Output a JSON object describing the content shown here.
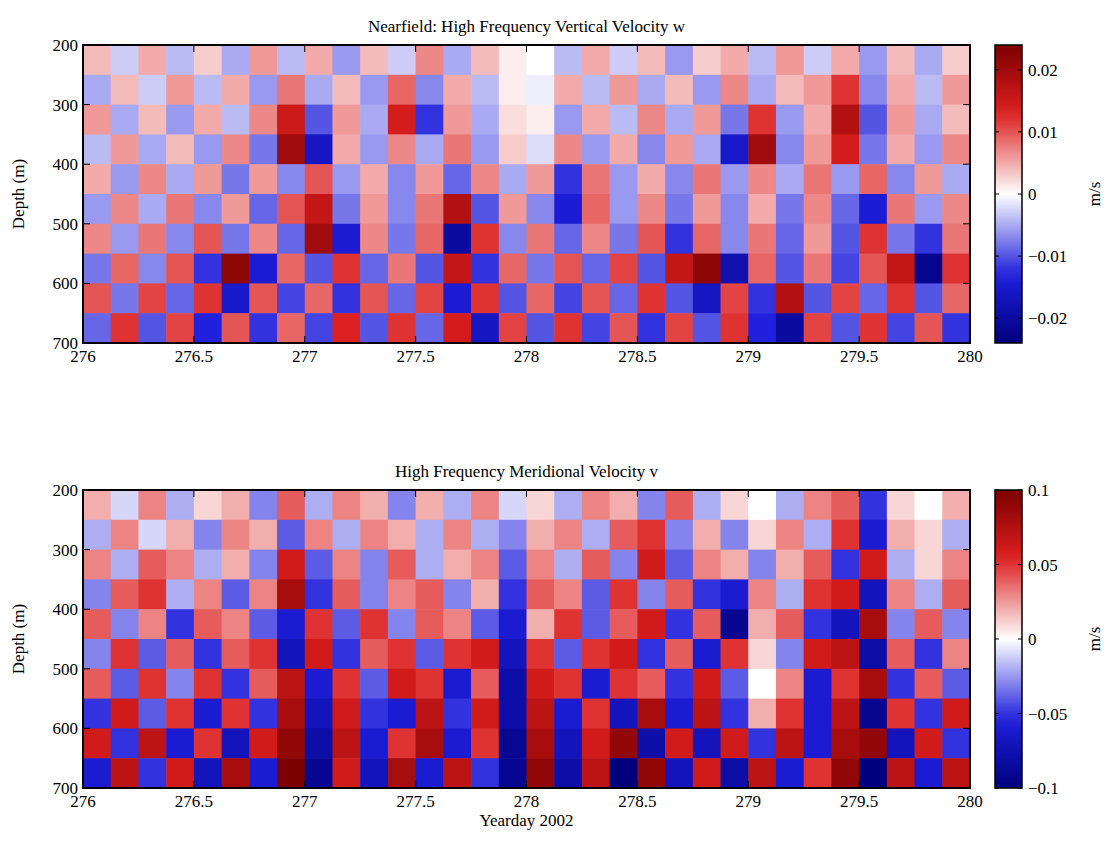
{
  "chart_data": [
    {
      "type": "heatmap",
      "title": "Nearfield: High Frequency Vertical Velocity w",
      "ylabel": "Depth (m)",
      "xlim": [
        276,
        280
      ],
      "xticks": [
        276,
        276.5,
        277,
        277.5,
        278,
        278.5,
        279,
        279.5,
        280
      ],
      "ylim": [
        700,
        200
      ],
      "yticks": [
        200,
        300,
        400,
        500,
        600,
        700
      ],
      "x": [
        276.0625,
        276.1875,
        276.3125,
        276.4375,
        276.5625,
        276.6875,
        276.8125,
        276.9375,
        277.0625,
        277.1875,
        277.3125,
        277.4375,
        277.5625,
        277.6875,
        277.8125,
        277.9375,
        278.0625,
        278.1875,
        278.3125,
        278.4375,
        278.5625,
        278.6875,
        278.8125,
        278.9375,
        279.0625,
        279.1875,
        279.3125,
        279.4375,
        279.5625,
        279.6875,
        279.8125,
        279.9375
      ],
      "y": [
        225,
        275,
        325,
        375,
        425,
        475,
        525,
        575,
        625,
        675
      ],
      "values": [
        [
          0.004,
          -0.003,
          0.005,
          -0.004,
          0.003,
          -0.005,
          0.006,
          -0.004,
          0.005,
          -0.006,
          0.004,
          -0.003,
          0.007,
          -0.005,
          0.004,
          0.001,
          0.0,
          -0.004,
          0.005,
          -0.003,
          0.004,
          -0.006,
          0.003,
          0.005,
          -0.004,
          0.006,
          -0.003,
          0.005,
          -0.006,
          0.004,
          -0.005,
          0.003
        ],
        [
          -0.005,
          0.004,
          -0.003,
          0.006,
          -0.004,
          0.005,
          -0.006,
          0.008,
          -0.005,
          0.004,
          -0.006,
          0.009,
          -0.007,
          0.005,
          -0.004,
          0.001,
          -0.001,
          0.005,
          -0.004,
          0.006,
          -0.005,
          0.004,
          -0.006,
          0.007,
          -0.005,
          0.004,
          0.006,
          0.012,
          -0.007,
          0.005,
          -0.004,
          0.006
        ],
        [
          0.006,
          -0.005,
          0.004,
          -0.006,
          0.005,
          -0.004,
          0.007,
          0.015,
          -0.01,
          0.006,
          -0.005,
          0.014,
          -0.012,
          0.006,
          -0.005,
          0.002,
          0.001,
          -0.006,
          0.005,
          -0.004,
          0.007,
          -0.005,
          0.006,
          -0.008,
          0.012,
          -0.006,
          0.005,
          0.018,
          -0.01,
          0.006,
          -0.005,
          0.004
        ],
        [
          -0.004,
          0.006,
          -0.005,
          0.004,
          -0.006,
          0.007,
          -0.008,
          0.02,
          -0.016,
          0.005,
          -0.006,
          0.007,
          -0.005,
          0.008,
          -0.006,
          0.003,
          -0.002,
          0.007,
          -0.006,
          0.005,
          -0.007,
          0.006,
          -0.005,
          -0.015,
          0.02,
          -0.007,
          0.006,
          0.014,
          -0.008,
          0.005,
          -0.006,
          0.007
        ],
        [
          0.005,
          -0.006,
          0.007,
          -0.005,
          0.006,
          -0.008,
          0.006,
          -0.007,
          0.01,
          -0.006,
          0.005,
          -0.007,
          0.006,
          -0.009,
          0.007,
          -0.005,
          0.006,
          -0.012,
          0.008,
          -0.006,
          0.005,
          -0.007,
          0.008,
          -0.006,
          0.007,
          -0.005,
          0.008,
          -0.006,
          0.009,
          -0.007,
          0.006,
          -0.005
        ],
        [
          -0.006,
          0.007,
          -0.005,
          0.008,
          -0.007,
          0.006,
          -0.009,
          0.01,
          0.016,
          -0.008,
          0.006,
          -0.007,
          0.008,
          0.018,
          -0.01,
          0.006,
          -0.007,
          -0.014,
          0.009,
          -0.006,
          0.007,
          -0.008,
          0.006,
          -0.007,
          0.005,
          -0.008,
          0.007,
          -0.009,
          -0.014,
          0.008,
          -0.006,
          0.007
        ],
        [
          0.007,
          -0.006,
          0.008,
          -0.007,
          0.01,
          -0.008,
          0.007,
          -0.009,
          0.02,
          -0.014,
          0.007,
          -0.008,
          0.009,
          -0.02,
          0.012,
          -0.007,
          0.008,
          -0.009,
          0.007,
          -0.008,
          0.01,
          -0.012,
          0.009,
          -0.007,
          0.008,
          -0.009,
          0.006,
          -0.01,
          0.012,
          -0.008,
          -0.012,
          0.008
        ],
        [
          -0.008,
          0.009,
          -0.007,
          0.01,
          -0.012,
          0.022,
          -0.014,
          0.009,
          -0.01,
          0.012,
          -0.009,
          0.008,
          -0.01,
          0.016,
          -0.012,
          0.009,
          -0.008,
          0.01,
          -0.009,
          0.011,
          -0.01,
          0.016,
          0.022,
          -0.018,
          0.009,
          -0.01,
          0.008,
          -0.011,
          0.01,
          0.016,
          -0.022,
          0.012
        ],
        [
          0.01,
          -0.008,
          0.011,
          -0.009,
          0.012,
          -0.015,
          0.01,
          -0.011,
          0.009,
          -0.012,
          0.01,
          -0.009,
          0.011,
          -0.014,
          0.012,
          -0.01,
          0.009,
          -0.011,
          0.01,
          -0.009,
          0.012,
          -0.01,
          -0.016,
          0.011,
          -0.012,
          0.018,
          -0.01,
          0.011,
          -0.009,
          0.012,
          -0.01,
          0.009
        ],
        [
          -0.009,
          0.012,
          -0.01,
          0.011,
          -0.013,
          0.01,
          -0.012,
          0.009,
          -0.011,
          0.013,
          -0.01,
          0.012,
          -0.009,
          0.014,
          -0.016,
          0.011,
          -0.01,
          0.012,
          -0.011,
          0.01,
          -0.012,
          0.011,
          -0.01,
          0.012,
          -0.013,
          -0.02,
          0.011,
          -0.01,
          0.012,
          -0.011,
          0.01,
          -0.012
        ]
      ],
      "colorbar": {
        "label": "m/s",
        "range": [
          -0.024,
          0.024
        ],
        "ticks": [
          -0.02,
          -0.01,
          0,
          0.01,
          0.02
        ]
      }
    },
    {
      "type": "heatmap",
      "title": "High Frequency Meridional Velocity v",
      "xlabel": "Yearday 2002",
      "ylabel": "Depth (m)",
      "xlim": [
        276,
        280
      ],
      "xticks": [
        276,
        276.5,
        277,
        277.5,
        278,
        278.5,
        279,
        279.5,
        280
      ],
      "ylim": [
        700,
        200
      ],
      "yticks": [
        200,
        300,
        400,
        500,
        600,
        700
      ],
      "x": [
        276.0625,
        276.1875,
        276.3125,
        276.4375,
        276.5625,
        276.6875,
        276.8125,
        276.9375,
        277.0625,
        277.1875,
        277.3125,
        277.4375,
        277.5625,
        277.6875,
        277.8125,
        277.9375,
        278.0625,
        278.1875,
        278.3125,
        278.4375,
        278.5625,
        278.6875,
        278.8125,
        278.9375,
        279.0625,
        279.1875,
        279.3125,
        279.4375,
        279.5625,
        279.6875,
        279.8125,
        279.9375
      ],
      "y": [
        225,
        275,
        325,
        375,
        425,
        475,
        525,
        575,
        625,
        675
      ],
      "values": [
        [
          0.02,
          -0.01,
          0.03,
          -0.02,
          0.01,
          0.02,
          -0.03,
          0.04,
          -0.02,
          0.03,
          0.02,
          -0.03,
          0.02,
          -0.02,
          0.03,
          -0.01,
          0.01,
          -0.02,
          0.03,
          0.02,
          -0.03,
          0.04,
          -0.02,
          0.01,
          0.0,
          -0.02,
          0.03,
          0.04,
          -0.05,
          0.01,
          0.0,
          0.02
        ],
        [
          -0.02,
          0.03,
          -0.01,
          0.02,
          -0.03,
          0.03,
          0.02,
          -0.04,
          0.03,
          -0.02,
          0.03,
          0.02,
          -0.02,
          0.03,
          -0.02,
          -0.03,
          0.02,
          0.03,
          -0.02,
          0.04,
          0.05,
          -0.03,
          0.02,
          -0.03,
          0.01,
          0.03,
          -0.02,
          0.05,
          -0.06,
          0.02,
          0.01,
          -0.02
        ],
        [
          0.03,
          -0.02,
          0.04,
          0.03,
          -0.02,
          0.02,
          -0.03,
          0.06,
          -0.04,
          0.03,
          -0.03,
          0.04,
          -0.02,
          0.02,
          0.03,
          -0.04,
          0.03,
          -0.02,
          0.04,
          -0.03,
          0.06,
          -0.04,
          0.03,
          0.02,
          -0.03,
          0.02,
          0.04,
          -0.05,
          0.06,
          -0.02,
          0.01,
          0.03
        ],
        [
          -0.03,
          0.04,
          0.05,
          -0.02,
          0.03,
          -0.04,
          0.03,
          0.08,
          -0.05,
          0.04,
          -0.03,
          0.03,
          0.04,
          -0.03,
          0.02,
          -0.05,
          0.04,
          0.03,
          -0.04,
          0.05,
          -0.03,
          0.04,
          -0.05,
          -0.06,
          0.03,
          -0.02,
          0.05,
          0.06,
          -0.07,
          0.03,
          -0.02,
          0.04
        ],
        [
          0.04,
          -0.03,
          0.03,
          -0.05,
          0.04,
          0.03,
          -0.04,
          -0.06,
          0.05,
          -0.04,
          0.05,
          -0.03,
          0.04,
          0.03,
          -0.04,
          -0.06,
          0.02,
          0.05,
          -0.04,
          0.04,
          0.06,
          -0.05,
          0.04,
          -0.09,
          0.02,
          0.04,
          -0.05,
          -0.07,
          0.08,
          -0.03,
          0.04,
          -0.03
        ],
        [
          -0.03,
          0.05,
          -0.04,
          0.04,
          -0.05,
          0.04,
          0.05,
          -0.07,
          0.06,
          -0.05,
          0.04,
          0.05,
          -0.04,
          0.05,
          0.06,
          -0.07,
          0.05,
          -0.04,
          0.05,
          0.06,
          -0.05,
          0.04,
          -0.06,
          0.05,
          0.01,
          -0.03,
          0.06,
          0.07,
          -0.08,
          0.04,
          -0.05,
          0.03
        ],
        [
          0.04,
          -0.04,
          0.05,
          -0.03,
          0.05,
          -0.05,
          0.04,
          0.07,
          -0.06,
          0.05,
          -0.04,
          0.06,
          0.05,
          -0.06,
          0.04,
          -0.08,
          0.06,
          0.05,
          -0.06,
          0.05,
          0.04,
          -0.05,
          0.06,
          -0.04,
          0.0,
          0.03,
          -0.06,
          0.05,
          0.08,
          -0.05,
          0.04,
          -0.04
        ],
        [
          -0.05,
          0.06,
          -0.04,
          0.05,
          -0.06,
          0.05,
          -0.05,
          0.08,
          -0.07,
          0.06,
          -0.05,
          -0.06,
          0.07,
          -0.05,
          0.06,
          -0.08,
          0.07,
          -0.06,
          0.05,
          -0.07,
          0.08,
          -0.06,
          0.07,
          -0.05,
          0.02,
          0.05,
          -0.06,
          0.07,
          -0.09,
          0.05,
          -0.05,
          0.06
        ],
        [
          0.06,
          -0.05,
          0.07,
          -0.06,
          0.05,
          -0.07,
          0.06,
          0.09,
          -0.08,
          0.07,
          -0.06,
          0.05,
          0.08,
          -0.06,
          0.05,
          -0.09,
          0.08,
          -0.07,
          0.06,
          0.09,
          -0.08,
          0.06,
          -0.07,
          0.06,
          -0.05,
          0.07,
          -0.06,
          0.08,
          0.09,
          -0.07,
          0.06,
          -0.05
        ],
        [
          -0.06,
          0.07,
          -0.05,
          0.06,
          -0.07,
          0.08,
          -0.06,
          0.1,
          -0.09,
          0.06,
          -0.07,
          0.08,
          -0.06,
          0.07,
          -0.05,
          -0.09,
          0.09,
          -0.08,
          0.07,
          -0.1,
          0.09,
          -0.07,
          0.06,
          -0.08,
          0.07,
          -0.06,
          0.05,
          0.09,
          -0.1,
          0.07,
          -0.06,
          0.07
        ]
      ],
      "colorbar": {
        "label": "m/s",
        "range": [
          -0.1,
          0.1
        ],
        "ticks": [
          -0.1,
          -0.05,
          0,
          0.05,
          0.1
        ]
      }
    }
  ]
}
